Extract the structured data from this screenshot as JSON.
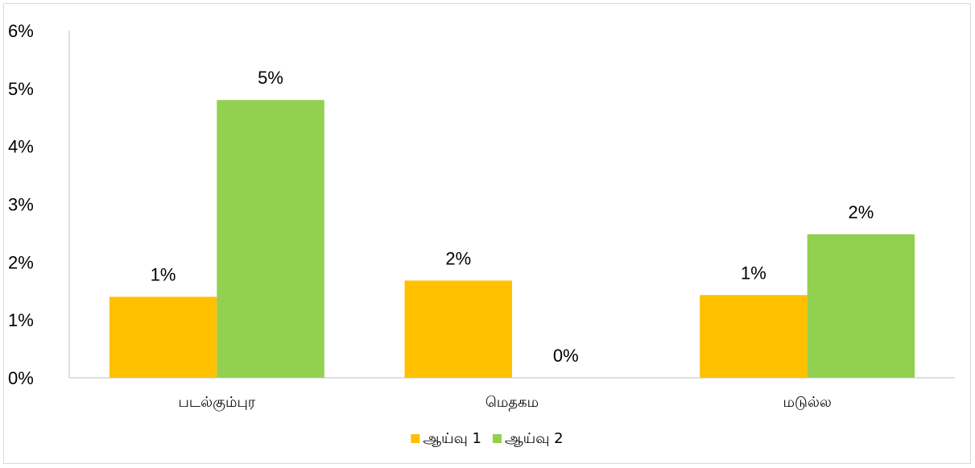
{
  "chart_data": {
    "type": "bar",
    "categories": [
      "படல்கும்புர",
      "மெதகம",
      "மடுல்ல"
    ],
    "series": [
      {
        "name": "ஆய்வு  1",
        "values": [
          0.014,
          0.0168,
          0.0143
        ],
        "labels": [
          "1%",
          "2%",
          "1%"
        ],
        "color": "#FFC000"
      },
      {
        "name": "ஆய்வு  2",
        "values": [
          0.048,
          0.0,
          0.0248
        ],
        "labels": [
          "5%",
          "0%",
          "2%"
        ],
        "color": "#92D050"
      }
    ],
    "ylim": [
      0,
      0.06
    ],
    "yticks": [
      "0%",
      "1%",
      "2%",
      "3%",
      "4%",
      "5%",
      "6%"
    ],
    "legend_position": "bottom",
    "grid": false
  }
}
